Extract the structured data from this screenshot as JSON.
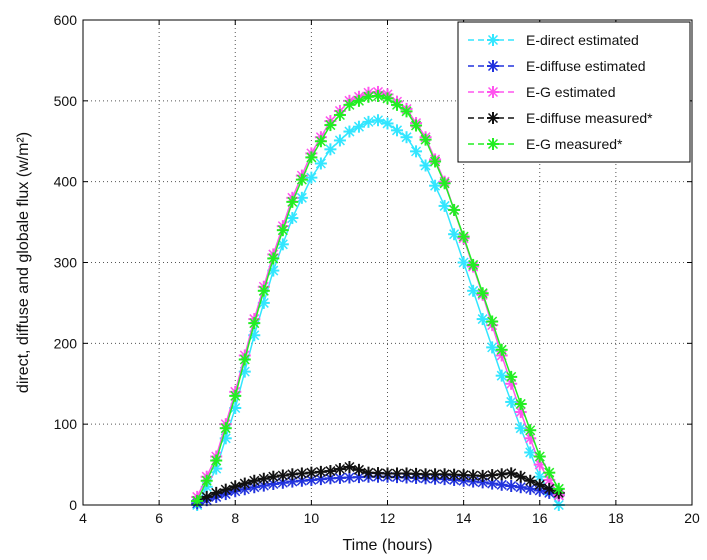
{
  "chart_data": {
    "type": "line",
    "title": "",
    "xlabel": "Time (hours)",
    "ylabel": "direct, diffuse and globale flux (w/m²)",
    "xlim": [
      4,
      20
    ],
    "ylim": [
      0,
      600
    ],
    "xticks": [
      4,
      6,
      8,
      10,
      12,
      14,
      16,
      18,
      20
    ],
    "yticks": [
      0,
      100,
      200,
      300,
      400,
      500,
      600
    ],
    "grid": true,
    "legend_position": "top-right",
    "marker": "star",
    "series": [
      {
        "name": "E-direct estimated",
        "color": "#33e6ff",
        "x": [
          7.0,
          7.5,
          8.0,
          8.5,
          9.0,
          9.5,
          10.0,
          10.5,
          11.0,
          11.5,
          11.75,
          12.0,
          12.5,
          13.0,
          13.5,
          14.0,
          14.5,
          15.0,
          15.5,
          16.0,
          16.5
        ],
        "y": [
          0,
          45,
          120,
          210,
          290,
          355,
          405,
          440,
          462,
          474,
          476,
          472,
          455,
          420,
          370,
          300,
          230,
          160,
          95,
          35,
          0
        ]
      },
      {
        "name": "E-diffuse estimated",
        "color": "#2233dd",
        "x": [
          7.0,
          7.5,
          8.0,
          8.5,
          9.0,
          9.5,
          10.0,
          10.5,
          11.0,
          11.5,
          12.0,
          12.5,
          13.0,
          13.5,
          14.0,
          14.5,
          15.0,
          15.5,
          16.0,
          16.5
        ],
        "y": [
          2,
          10,
          17,
          22,
          26,
          29,
          31,
          33,
          34,
          35,
          35,
          34,
          33,
          32,
          30,
          28,
          25,
          22,
          18,
          12
        ]
      },
      {
        "name": "E-G estimated",
        "color": "#ff55ee",
        "x": [
          7.0,
          7.5,
          8.0,
          8.5,
          9.0,
          9.5,
          10.0,
          10.5,
          11.0,
          11.5,
          11.75,
          12.0,
          12.5,
          13.0,
          13.5,
          14.0,
          14.5,
          15.0,
          15.5,
          16.0,
          16.5
        ],
        "y": [
          10,
          60,
          140,
          230,
          310,
          380,
          435,
          475,
          500,
          510,
          511,
          508,
          490,
          455,
          400,
          330,
          260,
          185,
          115,
          50,
          12
        ]
      },
      {
        "name": "E-diffuse measured*",
        "color": "#111111",
        "x": [
          7.0,
          7.5,
          8.0,
          8.5,
          9.0,
          9.5,
          10.0,
          10.5,
          11.0,
          11.5,
          12.0,
          12.5,
          13.0,
          13.5,
          14.0,
          14.5,
          15.0,
          15.2,
          15.5,
          16.0,
          16.5
        ],
        "y": [
          5,
          15,
          23,
          30,
          35,
          38,
          40,
          42,
          47,
          40,
          39,
          39,
          38,
          38,
          37,
          36,
          38,
          40,
          35,
          25,
          15
        ]
      },
      {
        "name": "E-G measured*",
        "color": "#22ee22",
        "x": [
          7.0,
          7.5,
          8.0,
          8.5,
          9.0,
          9.5,
          10.0,
          10.5,
          11.0,
          11.5,
          11.75,
          12.0,
          12.5,
          13.0,
          13.5,
          14.0,
          14.5,
          15.0,
          15.5,
          16.0,
          16.5
        ],
        "y": [
          5,
          55,
          135,
          225,
          305,
          375,
          430,
          470,
          495,
          505,
          506,
          503,
          487,
          452,
          398,
          332,
          262,
          192,
          125,
          60,
          20
        ]
      }
    ]
  }
}
